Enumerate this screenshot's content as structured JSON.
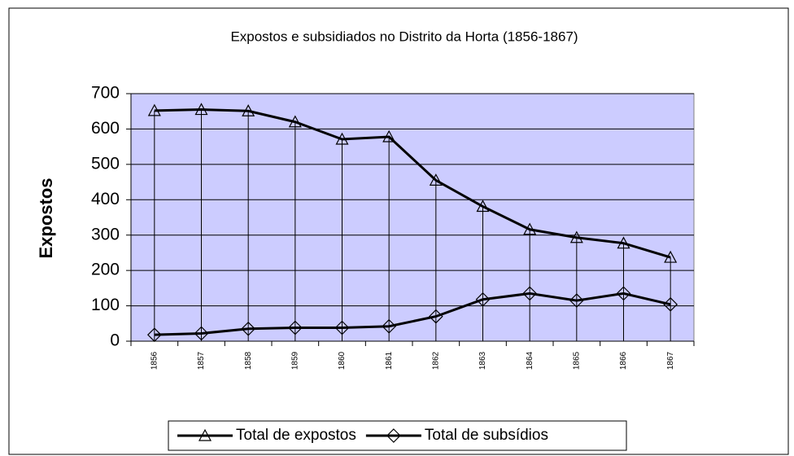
{
  "chart_data": {
    "type": "line",
    "title": "Expostos e subsidiados no Distrito da Horta (1856-1867)",
    "y_label": "Expostos",
    "categories": [
      "1856",
      "1857",
      "1858",
      "1859",
      "1860",
      "1861",
      "1862",
      "1863",
      "1864",
      "1865",
      "1866",
      "1867"
    ],
    "series": [
      {
        "name": "Total de expostos",
        "color": "#000000",
        "marker": "triangle",
        "values": [
          652,
          655,
          651,
          620,
          571,
          578,
          455,
          381,
          316,
          293,
          277,
          237
        ]
      },
      {
        "name": "Total de subsídios",
        "color": "#000000",
        "marker": "diamond",
        "values": [
          18,
          22,
          35,
          38,
          38,
          42,
          70,
          118,
          135,
          115,
          135,
          104
        ]
      }
    ],
    "ylim": [
      0,
      700
    ],
    "yticks": [
      0,
      100,
      200,
      300,
      400,
      500,
      600,
      700
    ],
    "grid": true,
    "drop_lines": true,
    "legend": "bottom"
  }
}
